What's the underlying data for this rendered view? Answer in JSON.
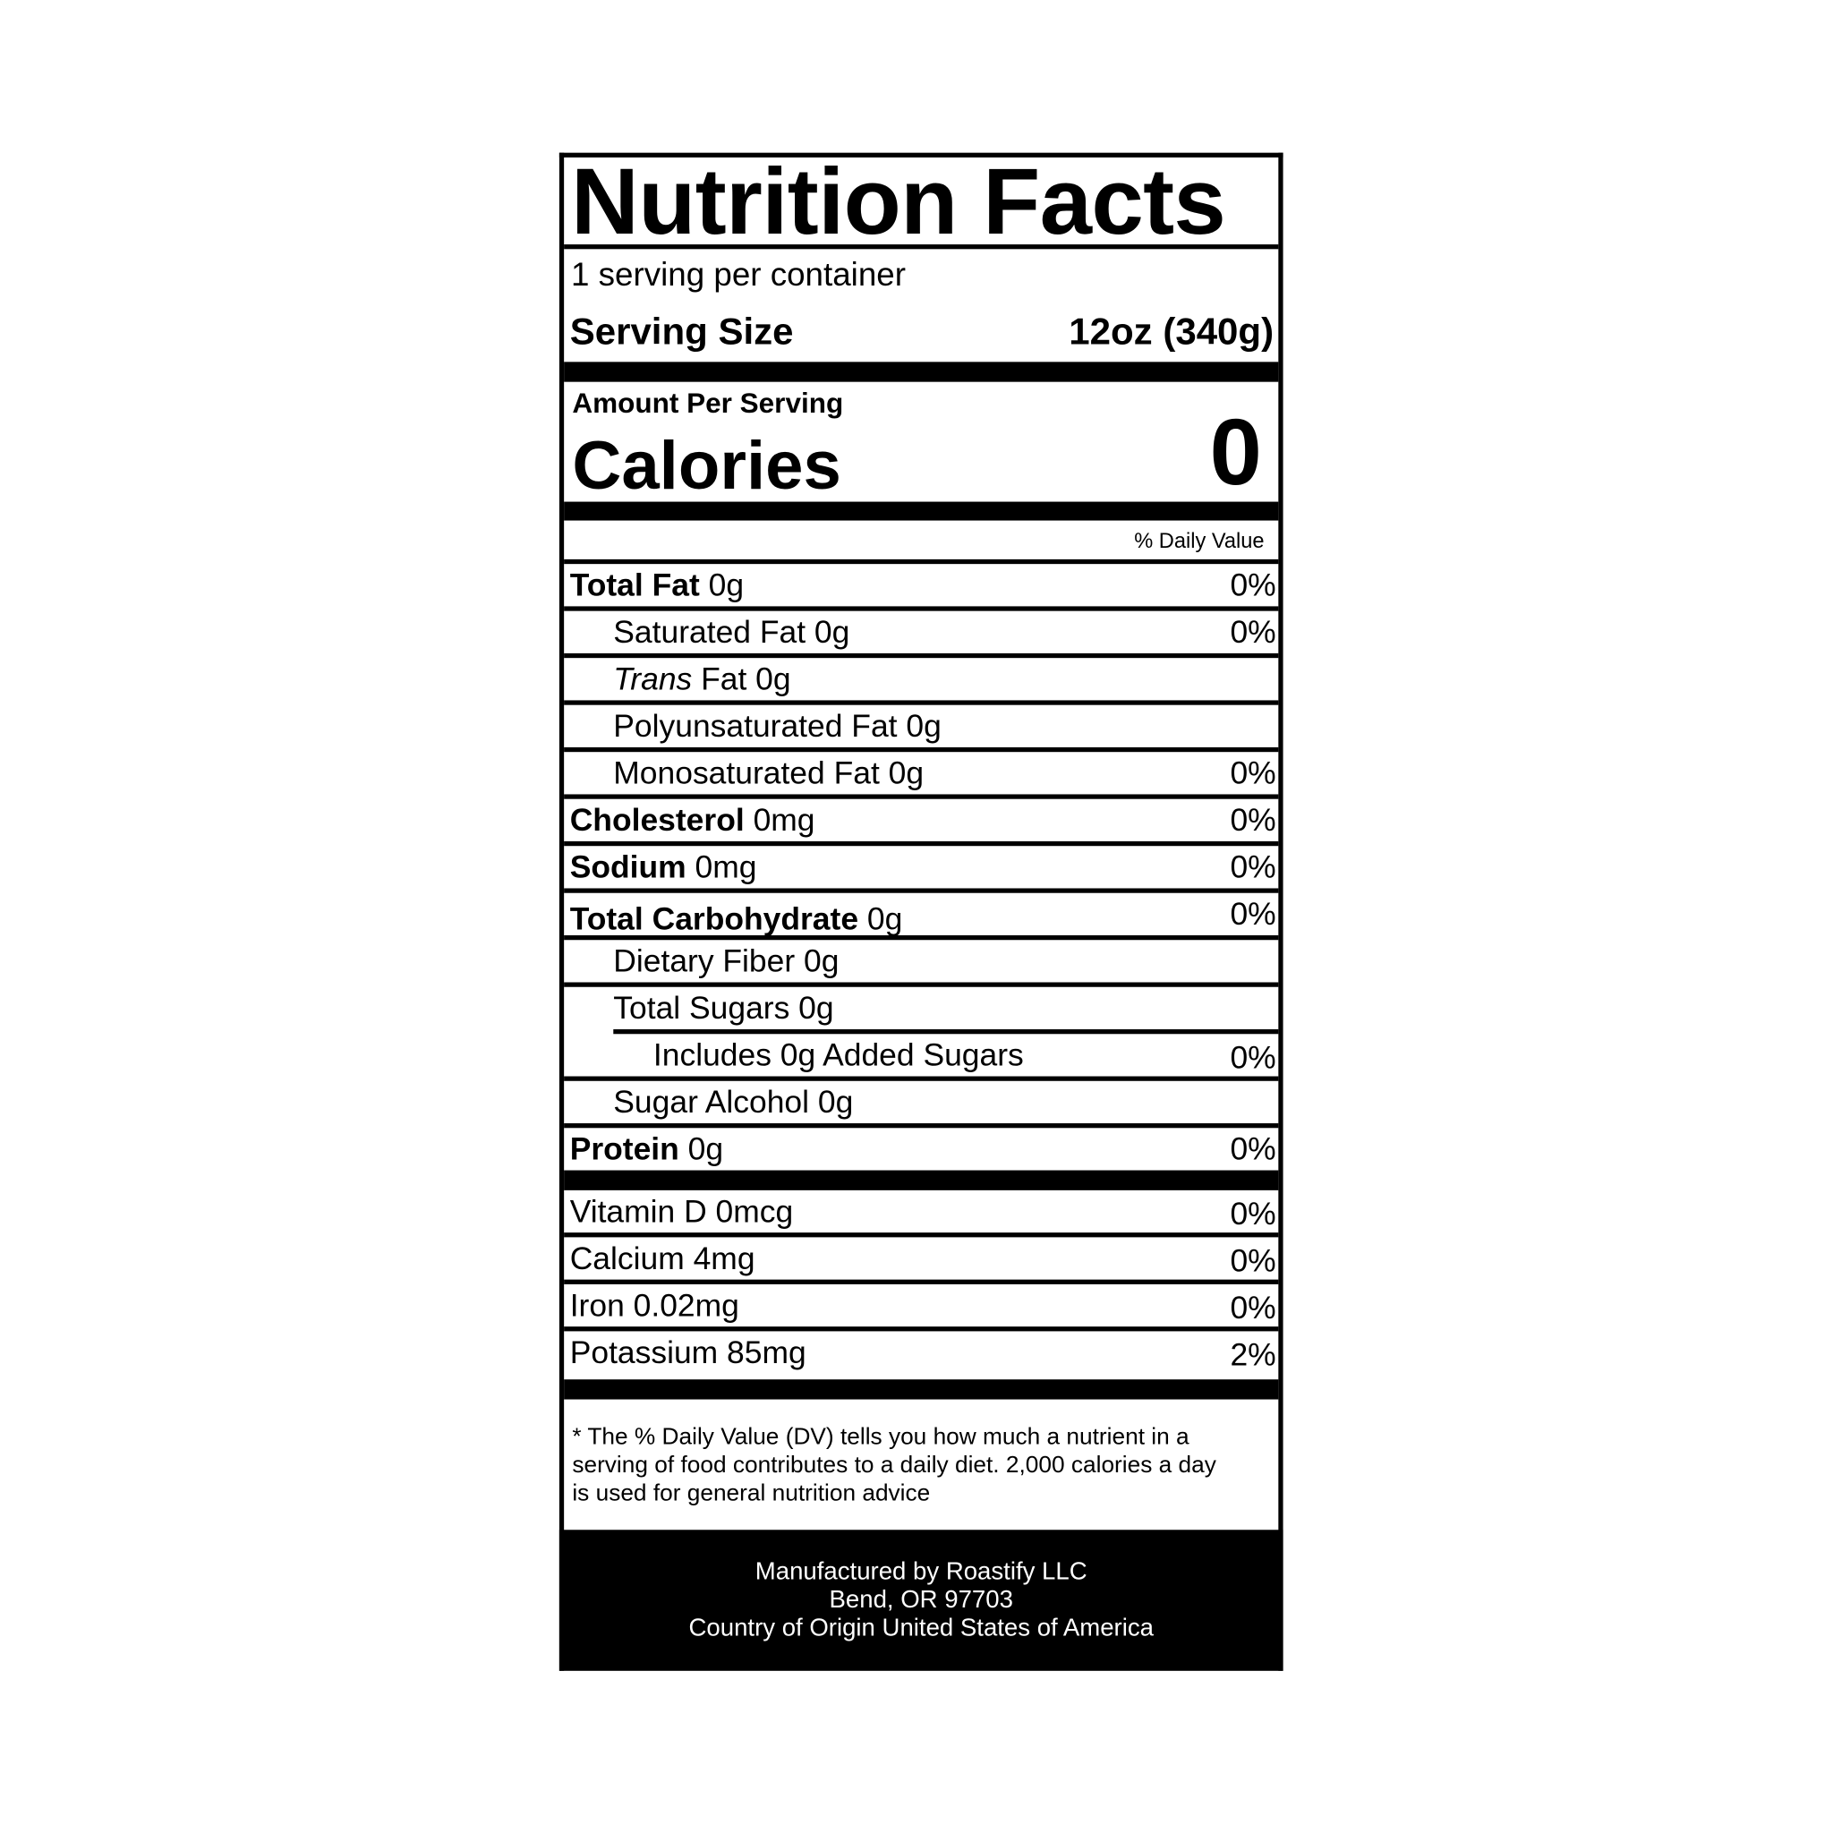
{
  "title": "Nutrition Facts",
  "servings_per_container": "1 serving per container",
  "serving_size_label": "Serving Size",
  "serving_size_value": "12oz (340g)",
  "amount_per_serving": "Amount Per Serving",
  "calories_label": "Calories",
  "calories_value": "0",
  "daily_value_header": "% Daily Value",
  "nutrients": [
    {
      "name": "Total Fat",
      "amount": "0g",
      "dv": "0%"
    },
    {
      "name": "Saturated Fat 0g",
      "dv": "0%"
    },
    {
      "name_italic": "Trans",
      "name": " Fat 0g"
    },
    {
      "name": "Polyunsaturated Fat 0g"
    },
    {
      "name": "Monosaturated Fat 0g",
      "dv": "0%"
    },
    {
      "name": "Cholesterol",
      "amount": "0mg",
      "dv": "0%"
    },
    {
      "name": "Sodium",
      "amount": "0mg",
      "dv": "0%"
    },
    {
      "name": "Total Carbohydrate",
      "amount": "0g",
      "dv": "0%"
    },
    {
      "name": "Dietary Fiber 0g"
    },
    {
      "name": "Total Sugars 0g"
    },
    {
      "name": "Includes 0g Added Sugars",
      "dv": "0%"
    },
    {
      "name": "Sugar Alcohol 0g"
    },
    {
      "name": "Protein",
      "amount": "0g",
      "dv": "0%"
    }
  ],
  "vitamins": [
    {
      "name": "Vitamin D 0mcg",
      "dv": "0%"
    },
    {
      "name": "Calcium 4mg",
      "dv": "0%"
    },
    {
      "name": "Iron 0.02mg",
      "dv": "0%"
    },
    {
      "name": "Potassium 85mg",
      "dv": "2%"
    }
  ],
  "footnote": "* The % Daily Value (DV) tells you how much a nutrient in a serving of food contributes to a daily diet. 2,000 calories a day is used for general nutrition advice",
  "manufacturer": {
    "line1": "Manufactured by Roastify LLC",
    "line2": "Bend, OR 97703",
    "line3": "Country of Origin United States of America"
  }
}
